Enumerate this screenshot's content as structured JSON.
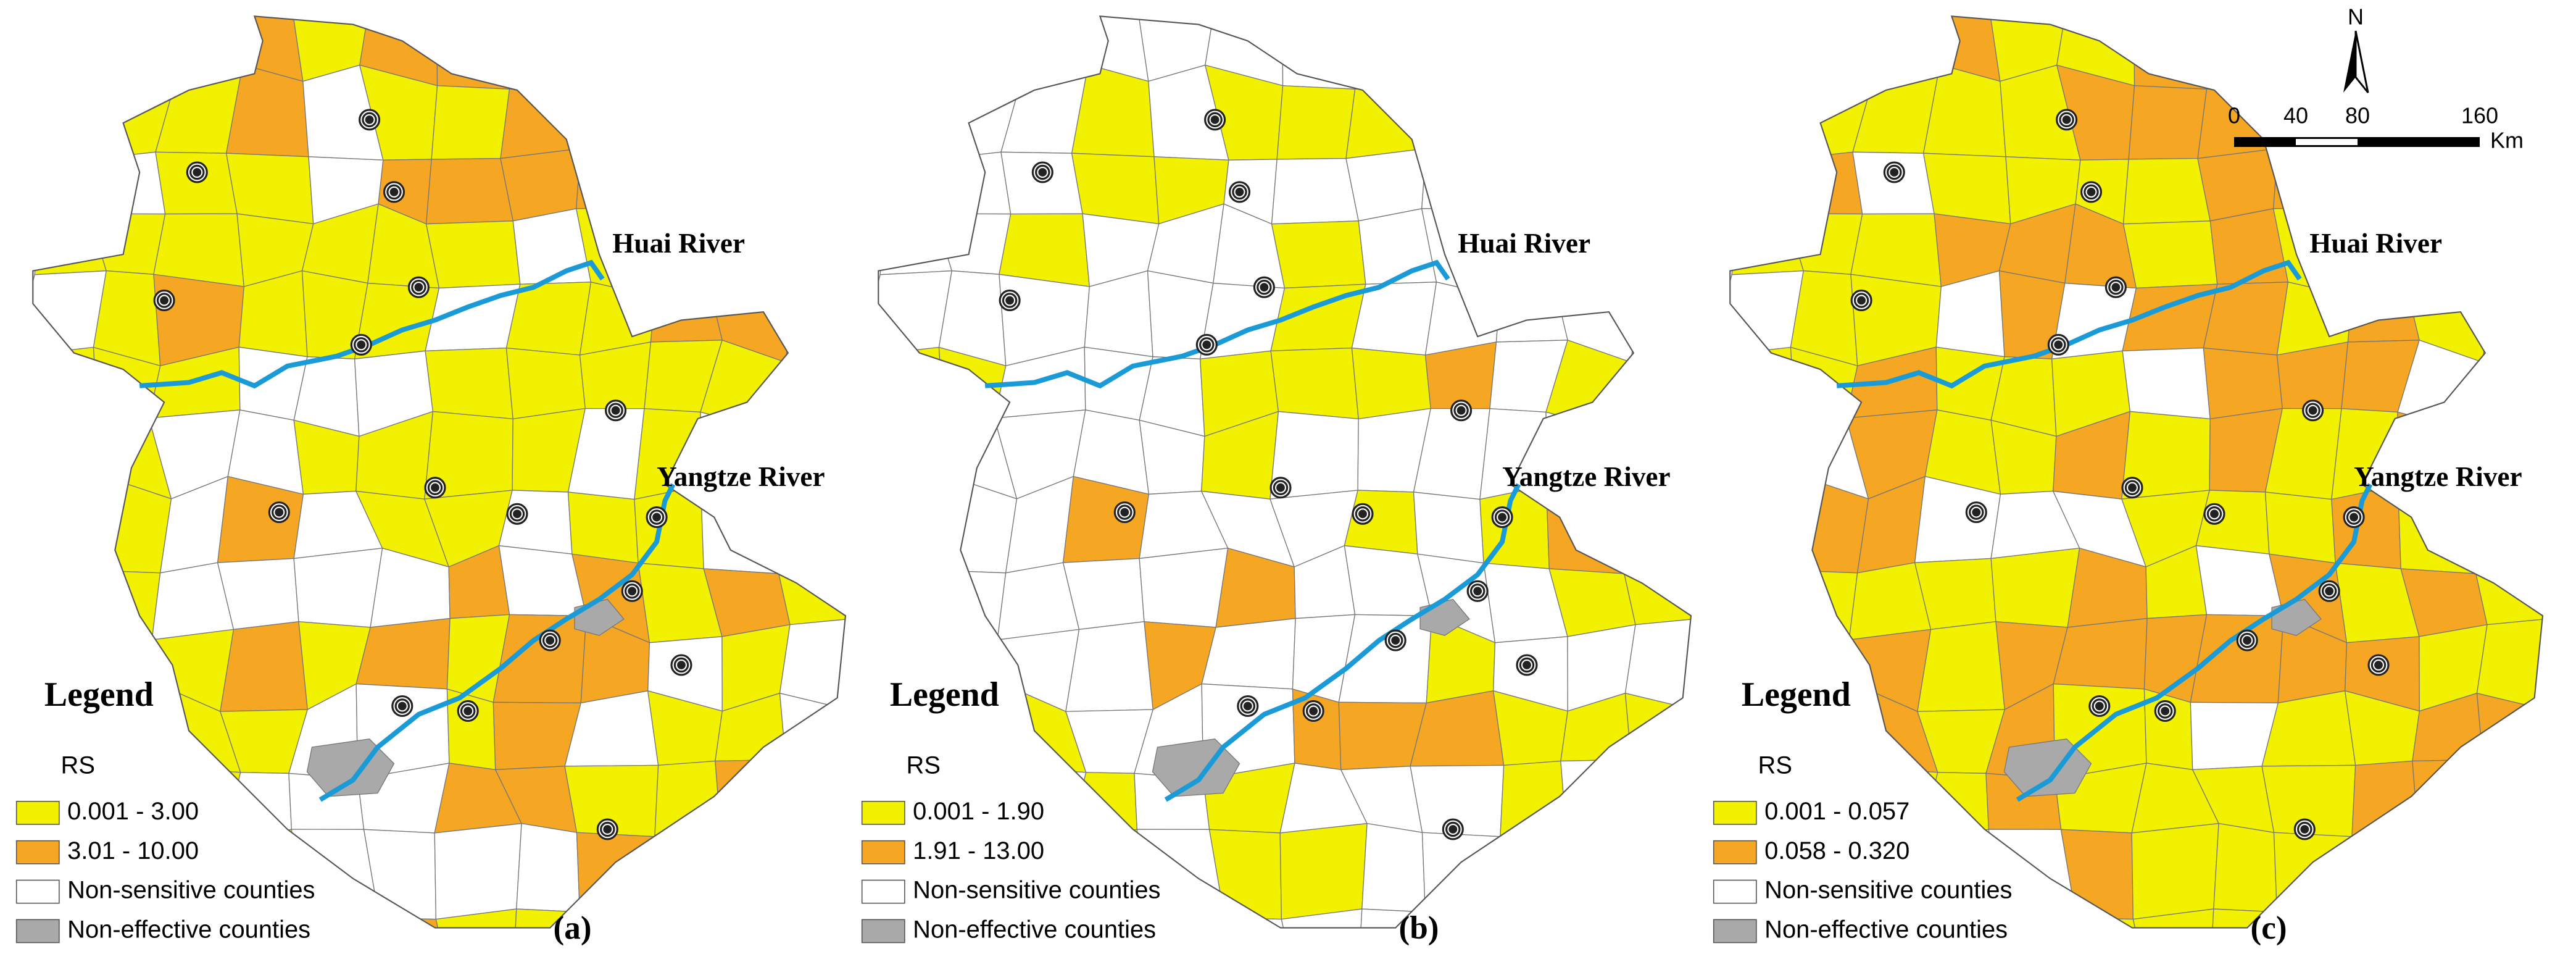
{
  "panels": [
    {
      "label": "(a)",
      "rivers": [
        "Huai River",
        "Yangtze River"
      ],
      "legend": {
        "title": "Legend",
        "subtitle": "RS",
        "items": [
          {
            "label": "0.001 - 3.00",
            "color": "#f2f200"
          },
          {
            "label": "3.01 - 10.00",
            "color": "#f5a623"
          },
          {
            "label": "Non-sensitive counties",
            "color": "#ffffff"
          },
          {
            "label": "Non-effective counties",
            "color": "#a9a9a9"
          }
        ]
      }
    },
    {
      "label": "(b)",
      "rivers": [
        "Huai River",
        "Yangtze River"
      ],
      "legend": {
        "title": "Legend",
        "subtitle": "RS",
        "items": [
          {
            "label": "0.001 - 1.90",
            "color": "#f2f200"
          },
          {
            "label": "1.91 - 13.00",
            "color": "#f5a623"
          },
          {
            "label": "Non-sensitive counties",
            "color": "#ffffff"
          },
          {
            "label": "Non-effective counties",
            "color": "#a9a9a9"
          }
        ]
      }
    },
    {
      "label": "(c)",
      "rivers": [
        "Huai River",
        "Yangtze River"
      ],
      "legend": {
        "title": "Legend",
        "subtitle": "RS",
        "items": [
          {
            "label": "0.001 - 0.057",
            "color": "#f2f200"
          },
          {
            "label": "0.058 - 0.320",
            "color": "#f5a623"
          },
          {
            "label": "Non-sensitive counties",
            "color": "#ffffff"
          },
          {
            "label": "Non-effective counties",
            "color": "#a9a9a9"
          }
        ]
      }
    }
  ],
  "scale_bar": {
    "north": "N",
    "ticks": [
      "0",
      "40",
      "80",
      "160"
    ],
    "unit": "Km"
  }
}
